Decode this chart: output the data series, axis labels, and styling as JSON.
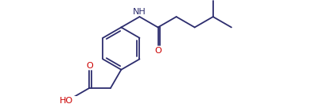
{
  "bg_color": "#ffffff",
  "bond_color": "#2d2d6e",
  "atom_color_O": "#cc0000",
  "atom_color_N": "#2d2d6e",
  "line_width": 1.3,
  "font_size_atom": 8.0,
  "fig_width": 4.01,
  "fig_height": 1.31,
  "dpi": 100,
  "xlim": [
    0,
    10.3
  ],
  "ylim": [
    0,
    3.27
  ]
}
